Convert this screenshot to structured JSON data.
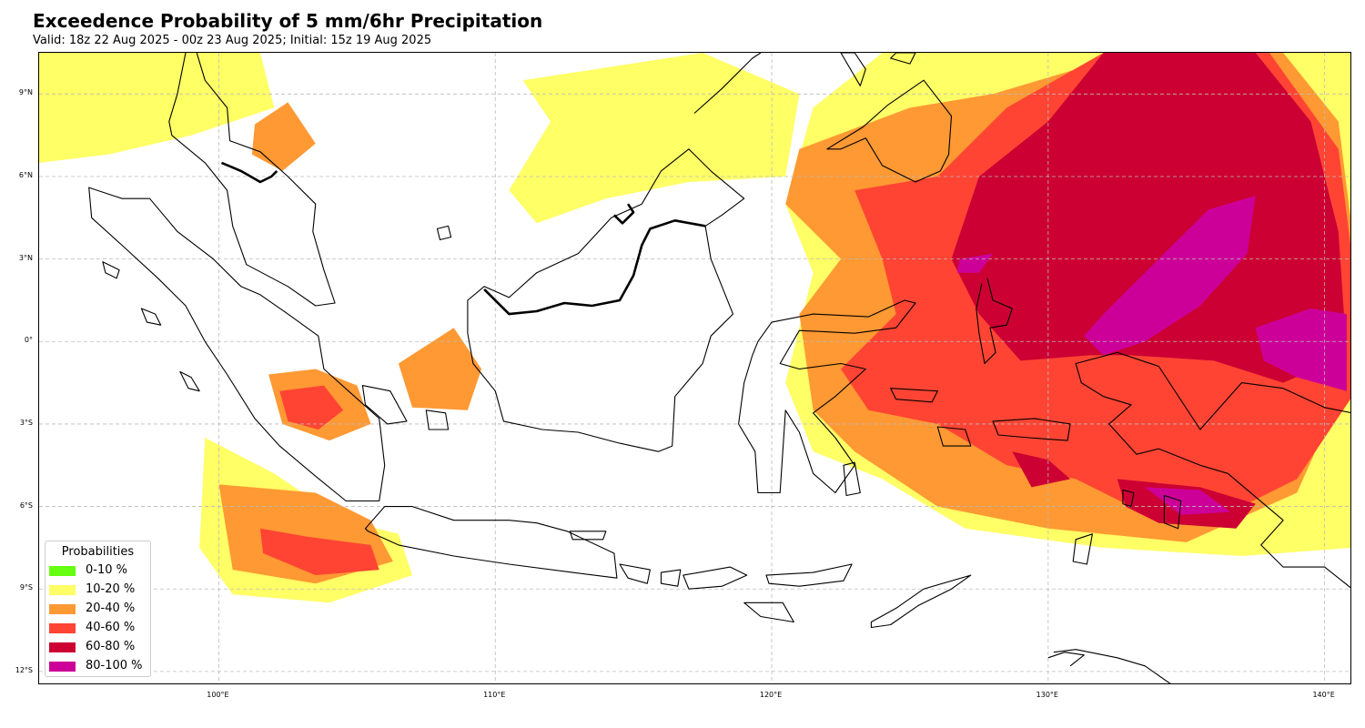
{
  "header": {
    "title": "Exceedence Probability of 5 mm/6hr Precipitation",
    "subtitle": "Valid: 18z 22 Aug 2025 - 00z 23 Aug 2025; Initial: 15z 19 Aug 2025"
  },
  "map": {
    "extent": {
      "lon_min": 93.5,
      "lon_max": 141.0,
      "lat_min": -12.5,
      "lat_max": 10.5
    },
    "gridlines": "dashed",
    "lat_ticks": [
      {
        "value": 9,
        "label": "9°N"
      },
      {
        "value": 6,
        "label": "6°N"
      },
      {
        "value": 3,
        "label": "3°N"
      },
      {
        "value": 0,
        "label": "0°"
      },
      {
        "value": -3,
        "label": "3°S"
      },
      {
        "value": -6,
        "label": "6°S"
      },
      {
        "value": -9,
        "label": "9°S"
      },
      {
        "value": -12,
        "label": "12°S"
      }
    ],
    "lon_ticks": [
      {
        "value": 100,
        "label": "100°E"
      },
      {
        "value": 110,
        "label": "110°E"
      },
      {
        "value": 120,
        "label": "120°E"
      },
      {
        "value": 130,
        "label": "130°E"
      },
      {
        "value": 140,
        "label": "140°E"
      }
    ]
  },
  "legend": {
    "title": "Probabilities",
    "placement": "bottom-left",
    "items": [
      {
        "label": "0-10 %",
        "color": "#66ff11"
      },
      {
        "label": "10-20 %",
        "color": "#ffff66"
      },
      {
        "label": "20-40 %",
        "color": "#ff9933"
      },
      {
        "label": "40-60 %",
        "color": "#ff4433"
      },
      {
        "label": "60-80 %",
        "color": "#cc0033"
      },
      {
        "label": "80-100 %",
        "color": "#cc0099"
      }
    ]
  }
}
